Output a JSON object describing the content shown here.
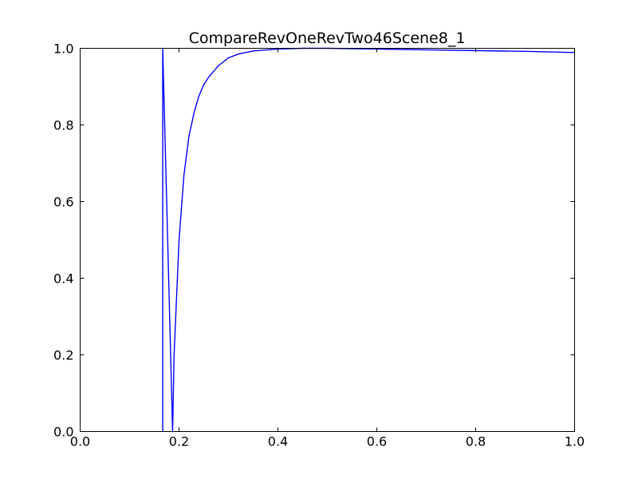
{
  "chart_data": {
    "type": "line",
    "title": "CompareRevOneRevTwo46Scene8_1",
    "xlabel": "",
    "ylabel": "",
    "xlim": [
      0.0,
      1.0
    ],
    "ylim": [
      0.0,
      1.0
    ],
    "grid": false,
    "x_ticks": [
      "0.0",
      "0.2",
      "0.4",
      "0.6",
      "0.8",
      "1.0"
    ],
    "y_ticks": [
      "0.0",
      "0.2",
      "0.4",
      "0.6",
      "0.8",
      "1.0"
    ],
    "series": [
      {
        "color": "#0000ff",
        "x": [
          0.167,
          0.167,
          0.187,
          0.19,
          0.2,
          0.21,
          0.22,
          0.23,
          0.24,
          0.25,
          0.26,
          0.27,
          0.28,
          0.3,
          0.32,
          0.35,
          0.4,
          0.45,
          0.5,
          0.6,
          0.7,
          0.8,
          0.9,
          1.0
        ],
        "y": [
          0.0,
          1.0,
          0.0,
          0.2,
          0.5,
          0.67,
          0.77,
          0.83,
          0.875,
          0.905,
          0.925,
          0.94,
          0.955,
          0.975,
          0.985,
          0.993,
          0.998,
          1.0,
          1.0,
          0.998,
          0.996,
          0.994,
          0.992,
          0.989
        ]
      }
    ]
  }
}
